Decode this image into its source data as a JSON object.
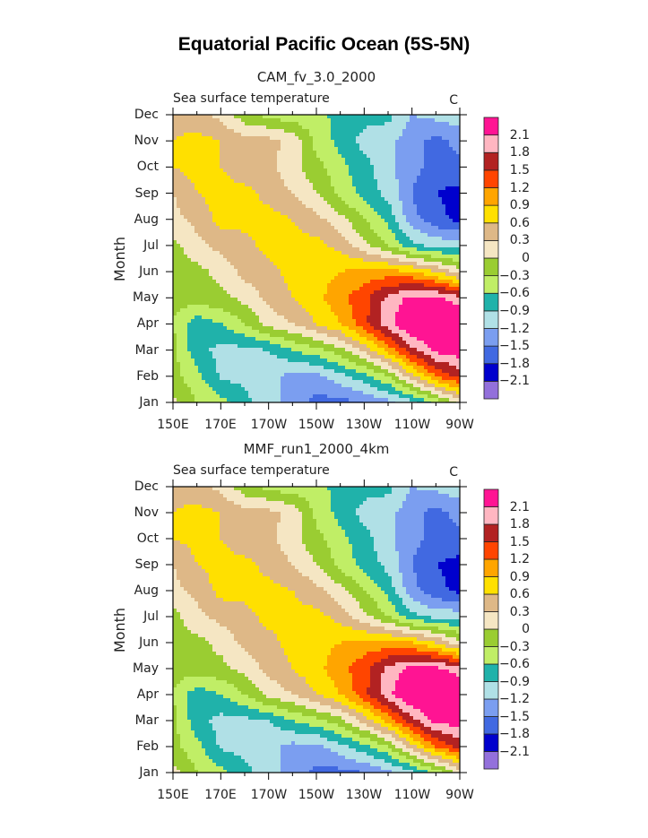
{
  "title": "Equatorial Pacific Ocean (5S-5N)",
  "chart_data": [
    {
      "type": "heatmap",
      "subtype": "filled-contour",
      "title": "CAM_fv_3.0_2000",
      "left_string": "Sea surface temperature",
      "right_string": "C",
      "ylabel": "Month",
      "xlabel": "",
      "x_tick_labels": [
        "150E",
        "170E",
        "170W",
        "150W",
        "130W",
        "110W",
        "90W"
      ],
      "y_tick_labels": [
        "Jan",
        "Feb",
        "Mar",
        "Apr",
        "May",
        "Jun",
        "Jul",
        "Aug",
        "Sep",
        "Oct",
        "Nov",
        "Dec"
      ],
      "xlim": [
        150,
        270
      ],
      "x": [
        150,
        160,
        170,
        180,
        190,
        200,
        210,
        220,
        230,
        240,
        250,
        260,
        270
      ],
      "y": [
        "Jan",
        "Feb",
        "Mar",
        "Apr",
        "May",
        "Jun",
        "Jul",
        "Aug",
        "Sep",
        "Oct",
        "Nov",
        "Dec"
      ],
      "z": [
        [
          0.1,
          -0.3,
          -0.5,
          -0.8,
          -1.1,
          -1.3,
          -1.6,
          -1.6,
          -1.5,
          -1.3,
          -1.0,
          -0.5,
          0.1
        ],
        [
          -0.2,
          -0.5,
          -0.95,
          -1.0,
          -1.1,
          -1.3,
          -1.3,
          -1.0,
          -0.7,
          -0.3,
          0.5,
          1.2,
          1.6
        ],
        [
          -0.2,
          -0.8,
          -1.0,
          -1.0,
          -0.9,
          -0.6,
          -0.4,
          -0.1,
          0.4,
          1.0,
          1.7,
          2.2,
          2.3
        ],
        [
          -0.3,
          -0.8,
          -0.6,
          -0.3,
          0.1,
          0.3,
          0.6,
          0.9,
          1.4,
          2.0,
          2.5,
          2.6,
          2.5
        ],
        [
          -0.2,
          -0.1,
          -0.1,
          0.1,
          0.4,
          0.6,
          0.8,
          1.1,
          1.4,
          1.9,
          2.2,
          2.2,
          1.9
        ],
        [
          -0.1,
          -0.1,
          0.1,
          0.4,
          0.5,
          0.7,
          0.8,
          0.9,
          1.0,
          1.0,
          0.9,
          0.6,
          0.1
        ],
        [
          -0.1,
          0.2,
          0.4,
          0.5,
          0.7,
          0.7,
          0.7,
          0.5,
          0.1,
          -0.3,
          -0.8,
          -1.0,
          -1.0
        ],
        [
          0.2,
          0.4,
          0.7,
          0.7,
          0.7,
          0.6,
          0.4,
          0.1,
          -0.3,
          -0.7,
          -1.4,
          -1.7,
          -1.9
        ],
        [
          0.3,
          0.6,
          0.7,
          0.7,
          0.5,
          0.3,
          0.0,
          -0.4,
          -0.7,
          -1.0,
          -1.5,
          -1.8,
          -1.9
        ],
        [
          0.6,
          0.7,
          0.6,
          0.4,
          0.4,
          0.1,
          -0.2,
          -0.5,
          -0.8,
          -1.1,
          -1.4,
          -1.6,
          -1.6
        ],
        [
          0.6,
          0.7,
          0.6,
          0.4,
          0.4,
          0.2,
          -0.4,
          -0.7,
          -1.0,
          -1.1,
          -1.4,
          -1.6,
          -1.4
        ],
        [
          0.5,
          0.4,
          0.2,
          -0.2,
          -0.4,
          -0.5,
          -0.5,
          -0.7,
          -0.8,
          -0.8,
          -1.2,
          -1.1,
          -1.0
        ]
      ]
    },
    {
      "type": "heatmap",
      "subtype": "filled-contour",
      "title": "MMF_run1_2000_4km",
      "left_string": "Sea surface temperature",
      "right_string": "C",
      "ylabel": "Month",
      "xlabel": "",
      "x_tick_labels": [
        "150E",
        "170E",
        "170W",
        "150W",
        "130W",
        "110W",
        "90W"
      ],
      "y_tick_labels": [
        "Jan",
        "Feb",
        "Mar",
        "Apr",
        "May",
        "Jun",
        "Jul",
        "Aug",
        "Sep",
        "Oct",
        "Nov",
        "Dec"
      ],
      "xlim": [
        150,
        270
      ],
      "x": [
        150,
        160,
        170,
        180,
        190,
        200,
        210,
        220,
        230,
        240,
        250,
        260,
        270
      ],
      "y": [
        "Jan",
        "Feb",
        "Mar",
        "Apr",
        "May",
        "Jun",
        "Jul",
        "Aug",
        "Sep",
        "Oct",
        "Nov",
        "Dec"
      ],
      "z": [
        [
          0.1,
          -0.3,
          -0.5,
          -0.8,
          -1.1,
          -1.3,
          -1.6,
          -1.6,
          -1.5,
          -1.3,
          -1.0,
          -0.5,
          0.1
        ],
        [
          -0.2,
          -0.5,
          -0.95,
          -1.0,
          -1.1,
          -1.3,
          -1.3,
          -1.0,
          -0.7,
          -0.3,
          0.5,
          1.2,
          1.6
        ],
        [
          -0.2,
          -0.8,
          -1.0,
          -1.0,
          -0.9,
          -0.6,
          -0.4,
          -0.1,
          0.4,
          1.0,
          1.7,
          2.2,
          2.3
        ],
        [
          -0.3,
          -0.8,
          -0.6,
          -0.3,
          0.1,
          0.3,
          0.6,
          0.9,
          1.4,
          2.0,
          2.5,
          2.6,
          2.5
        ],
        [
          -0.2,
          -0.1,
          -0.1,
          0.1,
          0.4,
          0.6,
          0.8,
          1.1,
          1.4,
          1.9,
          2.2,
          2.2,
          1.9
        ],
        [
          -0.1,
          -0.1,
          0.1,
          0.4,
          0.5,
          0.7,
          0.8,
          0.9,
          1.0,
          1.0,
          0.9,
          0.6,
          0.1
        ],
        [
          -0.1,
          0.2,
          0.4,
          0.5,
          0.7,
          0.7,
          0.7,
          0.5,
          0.1,
          -0.3,
          -0.8,
          -1.0,
          -1.0
        ],
        [
          0.2,
          0.4,
          0.7,
          0.7,
          0.7,
          0.6,
          0.4,
          0.1,
          -0.3,
          -0.7,
          -1.4,
          -1.7,
          -1.9
        ],
        [
          0.3,
          0.6,
          0.7,
          0.7,
          0.5,
          0.3,
          0.0,
          -0.4,
          -0.7,
          -1.0,
          -1.5,
          -1.8,
          -1.9
        ],
        [
          0.6,
          0.7,
          0.6,
          0.4,
          0.4,
          0.1,
          -0.2,
          -0.5,
          -0.8,
          -1.1,
          -1.4,
          -1.6,
          -1.6
        ],
        [
          0.6,
          0.7,
          0.6,
          0.4,
          0.4,
          0.2,
          -0.4,
          -0.7,
          -1.0,
          -1.1,
          -1.4,
          -1.6,
          -1.4
        ],
        [
          0.5,
          0.4,
          0.2,
          -0.2,
          -0.4,
          -0.5,
          -0.5,
          -0.7,
          -0.8,
          -0.8,
          -1.2,
          -1.1,
          -1.0
        ]
      ]
    }
  ],
  "colorbar": {
    "levels": [
      -2.1,
      -1.8,
      -1.5,
      -1.2,
      -0.9,
      -0.6,
      -0.3,
      0,
      0.3,
      0.6,
      0.9,
      1.2,
      1.5,
      1.8,
      2.1
    ],
    "labels": [
      "−2.1",
      "−1.8",
      "−1.5",
      "−1.2",
      "−0.9",
      "−0.6",
      "−0.3",
      "0",
      "0.3",
      "0.6",
      "0.9",
      "1.2",
      "1.5",
      "1.8",
      "2.1"
    ],
    "colors": [
      "#9370DB",
      "#0000CD",
      "#4169E1",
      "#7B9EF0",
      "#B0E0E6",
      "#20B2AA",
      "#C0EE66",
      "#9ACD32",
      "#F5E6C3",
      "#DEB887",
      "#FFE000",
      "#FFA500",
      "#FF4500",
      "#B22222",
      "#FFB6C1",
      "#FF1493"
    ]
  }
}
